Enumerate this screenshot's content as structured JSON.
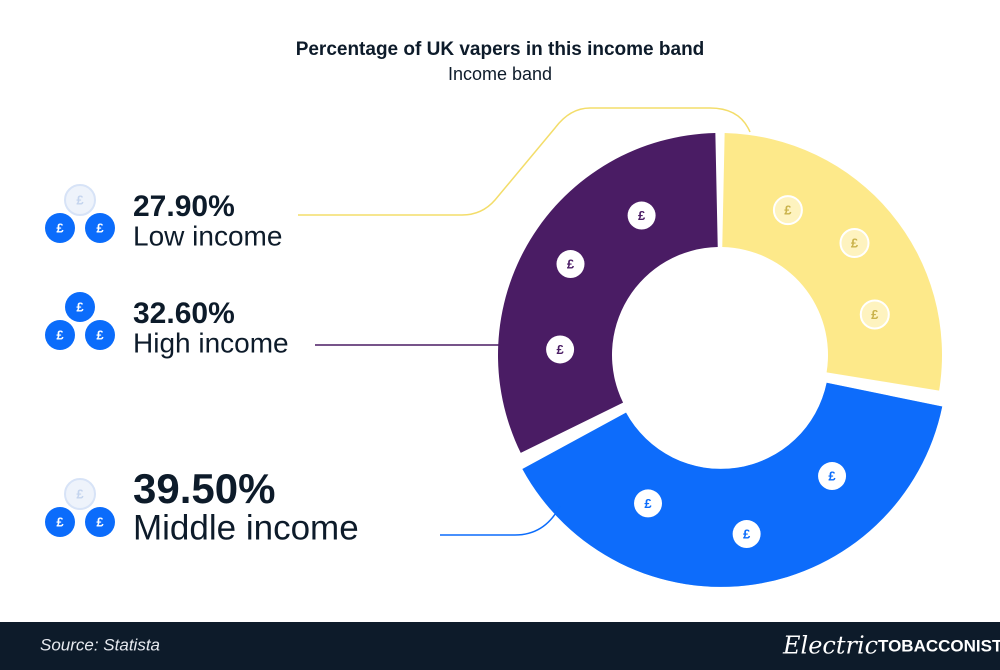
{
  "chart_data": {
    "type": "donut",
    "title": "Percentage of UK vapers in this income band",
    "subtitle": "Income band",
    "categories": [
      "Low income",
      "Middle income",
      "High income"
    ],
    "values": [
      27.9,
      39.5,
      32.6
    ],
    "value_labels": [
      "27.90%",
      "39.50%",
      "32.60%"
    ],
    "colors": [
      "#fde98a",
      "#0b6cfb",
      "#4a1c64"
    ],
    "icon_symbol": "£"
  },
  "footer": {
    "source": "Source: Statista",
    "brand": [
      "Electric",
      "TOBACCONIST"
    ]
  }
}
